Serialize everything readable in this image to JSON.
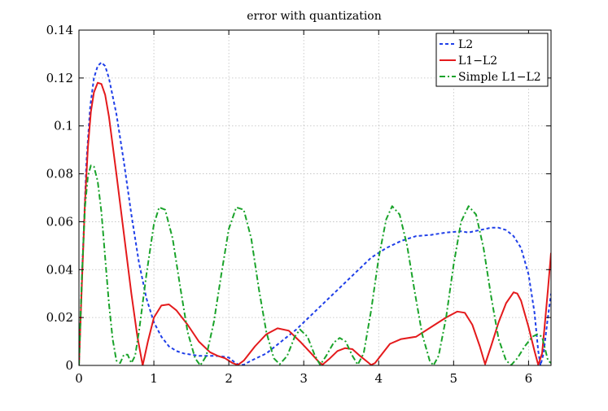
{
  "chart_data": {
    "type": "line",
    "title": "error with quantization",
    "xlabel": "",
    "ylabel": "",
    "xlim": [
      0,
      6.3
    ],
    "ylim": [
      0,
      0.14
    ],
    "x_ticks": [
      0,
      1,
      2,
      3,
      4,
      5,
      6
    ],
    "x_tick_labels": [
      "0",
      "1",
      "2",
      "3",
      "4",
      "5",
      "6"
    ],
    "y_ticks": [
      0,
      0.02,
      0.04,
      0.06,
      0.08,
      0.1,
      0.12,
      0.14
    ],
    "y_tick_labels": [
      "0",
      "0.02",
      "0.04",
      "0.06",
      "0.08",
      "0.1",
      "0.12",
      "0.14"
    ],
    "grid": true,
    "legend_position": "top-right",
    "series": [
      {
        "name": "L2",
        "color": "#1f3fe8",
        "dash": "dashed",
        "points": [
          [
            0,
            0
          ],
          [
            0.05,
            0.045
          ],
          [
            0.1,
            0.085
          ],
          [
            0.15,
            0.108
          ],
          [
            0.2,
            0.12
          ],
          [
            0.25,
            0.125
          ],
          [
            0.3,
            0.1265
          ],
          [
            0.35,
            0.125
          ],
          [
            0.4,
            0.12
          ],
          [
            0.5,
            0.105
          ],
          [
            0.6,
            0.085
          ],
          [
            0.7,
            0.063
          ],
          [
            0.8,
            0.043
          ],
          [
            0.9,
            0.028
          ],
          [
            1.0,
            0.018
          ],
          [
            1.1,
            0.012
          ],
          [
            1.2,
            0.008
          ],
          [
            1.3,
            0.006
          ],
          [
            1.4,
            0.005
          ],
          [
            1.5,
            0.0045
          ],
          [
            1.6,
            0.004
          ],
          [
            1.7,
            0.004
          ],
          [
            1.8,
            0.004
          ],
          [
            1.9,
            0.0038
          ],
          [
            2.0,
            0.0033
          ],
          [
            2.05,
            0.002
          ],
          [
            2.1,
            0.0008
          ],
          [
            2.15,
            0.0001
          ],
          [
            2.2,
            0.0003
          ],
          [
            2.3,
            0.002
          ],
          [
            2.5,
            0.005
          ],
          [
            2.7,
            0.01
          ],
          [
            2.9,
            0.015
          ],
          [
            3.1,
            0.021
          ],
          [
            3.3,
            0.027
          ],
          [
            3.5,
            0.033
          ],
          [
            3.7,
            0.039
          ],
          [
            3.9,
            0.045
          ],
          [
            4.1,
            0.049
          ],
          [
            4.3,
            0.052
          ],
          [
            4.5,
            0.054
          ],
          [
            4.7,
            0.0545
          ],
          [
            4.9,
            0.0555
          ],
          [
            5.1,
            0.056
          ],
          [
            5.2,
            0.0555
          ],
          [
            5.35,
            0.0565
          ],
          [
            5.5,
            0.0575
          ],
          [
            5.6,
            0.0575
          ],
          [
            5.7,
            0.0565
          ],
          [
            5.8,
            0.054
          ],
          [
            5.9,
            0.049
          ],
          [
            6.0,
            0.038
          ],
          [
            6.08,
            0.022
          ],
          [
            6.13,
            0.006
          ],
          [
            6.16,
            0
          ],
          [
            6.2,
            0.005
          ],
          [
            6.25,
            0.018
          ],
          [
            6.3,
            0.03
          ]
        ]
      },
      {
        "name": "L1−L2",
        "color": "#e41a1c",
        "dash": "solid",
        "points": [
          [
            0,
            0
          ],
          [
            0.04,
            0.035
          ],
          [
            0.08,
            0.068
          ],
          [
            0.12,
            0.091
          ],
          [
            0.16,
            0.106
          ],
          [
            0.2,
            0.114
          ],
          [
            0.25,
            0.118
          ],
          [
            0.3,
            0.1175
          ],
          [
            0.35,
            0.113
          ],
          [
            0.4,
            0.104
          ],
          [
            0.5,
            0.08
          ],
          [
            0.6,
            0.055
          ],
          [
            0.7,
            0.03
          ],
          [
            0.78,
            0.012
          ],
          [
            0.85,
            0
          ],
          [
            0.92,
            0.01
          ],
          [
            1.0,
            0.02
          ],
          [
            1.1,
            0.025
          ],
          [
            1.2,
            0.0255
          ],
          [
            1.3,
            0.023
          ],
          [
            1.45,
            0.017
          ],
          [
            1.6,
            0.01
          ],
          [
            1.75,
            0.0055
          ],
          [
            1.85,
            0.004
          ],
          [
            1.95,
            0.003
          ],
          [
            2.05,
            0.001
          ],
          [
            2.12,
            0.0002
          ],
          [
            2.2,
            0.002
          ],
          [
            2.35,
            0.008
          ],
          [
            2.5,
            0.013
          ],
          [
            2.65,
            0.0155
          ],
          [
            2.8,
            0.0145
          ],
          [
            2.95,
            0.01
          ],
          [
            3.1,
            0.005
          ],
          [
            3.2,
            0.0015
          ],
          [
            3.25,
            0.0003
          ],
          [
            3.35,
            0.003
          ],
          [
            3.45,
            0.006
          ],
          [
            3.55,
            0.0072
          ],
          [
            3.65,
            0.0068
          ],
          [
            3.75,
            0.004
          ],
          [
            3.85,
            0.0015
          ],
          [
            3.9,
            0.0002
          ],
          [
            3.95,
            0.001
          ],
          [
            4.05,
            0.005
          ],
          [
            4.15,
            0.009
          ],
          [
            4.3,
            0.011
          ],
          [
            4.5,
            0.012
          ],
          [
            4.7,
            0.016
          ],
          [
            4.9,
            0.02
          ],
          [
            5.05,
            0.0225
          ],
          [
            5.15,
            0.022
          ],
          [
            5.25,
            0.017
          ],
          [
            5.35,
            0.008
          ],
          [
            5.42,
            0.0005
          ],
          [
            5.5,
            0.008
          ],
          [
            5.6,
            0.018
          ],
          [
            5.7,
            0.026
          ],
          [
            5.8,
            0.0305
          ],
          [
            5.85,
            0.03
          ],
          [
            5.9,
            0.027
          ],
          [
            6.0,
            0.016
          ],
          [
            6.08,
            0.006
          ],
          [
            6.13,
            0.0002
          ],
          [
            6.18,
            0.005
          ],
          [
            6.22,
            0.018
          ],
          [
            6.26,
            0.032
          ],
          [
            6.3,
            0.047
          ]
        ]
      },
      {
        "name": "Simple L1−L2",
        "color": "#1aa32a",
        "dash": "dashdot",
        "points": [
          [
            0,
            0
          ],
          [
            0.04,
            0.038
          ],
          [
            0.08,
            0.066
          ],
          [
            0.12,
            0.079
          ],
          [
            0.16,
            0.0835
          ],
          [
            0.2,
            0.083
          ],
          [
            0.25,
            0.077
          ],
          [
            0.3,
            0.064
          ],
          [
            0.35,
            0.045
          ],
          [
            0.4,
            0.026
          ],
          [
            0.45,
            0.011
          ],
          [
            0.5,
            0.002
          ],
          [
            0.55,
            0.001
          ],
          [
            0.6,
            0.0045
          ],
          [
            0.65,
            0.0045
          ],
          [
            0.7,
            0.001
          ],
          [
            0.75,
            0.004
          ],
          [
            0.8,
            0.014
          ],
          [
            0.9,
            0.038
          ],
          [
            1.0,
            0.059
          ],
          [
            1.07,
            0.066
          ],
          [
            1.15,
            0.065
          ],
          [
            1.25,
            0.053
          ],
          [
            1.35,
            0.033
          ],
          [
            1.45,
            0.014
          ],
          [
            1.55,
            0.003
          ],
          [
            1.62,
            0
          ],
          [
            1.7,
            0.004
          ],
          [
            1.8,
            0.018
          ],
          [
            1.9,
            0.038
          ],
          [
            2.0,
            0.057
          ],
          [
            2.1,
            0.066
          ],
          [
            2.2,
            0.065
          ],
          [
            2.3,
            0.053
          ],
          [
            2.4,
            0.032
          ],
          [
            2.5,
            0.014
          ],
          [
            2.6,
            0.003
          ],
          [
            2.68,
            0.0005
          ],
          [
            2.78,
            0.004
          ],
          [
            2.88,
            0.012
          ],
          [
            2.95,
            0.015
          ],
          [
            3.05,
            0.012
          ],
          [
            3.15,
            0.004
          ],
          [
            3.22,
            0.0002
          ],
          [
            3.3,
            0.004
          ],
          [
            3.4,
            0.0095
          ],
          [
            3.48,
            0.0115
          ],
          [
            3.56,
            0.01
          ],
          [
            3.65,
            0.004
          ],
          [
            3.72,
            0.0003
          ],
          [
            3.8,
            0.005
          ],
          [
            3.9,
            0.023
          ],
          [
            4.0,
            0.045
          ],
          [
            4.1,
            0.061
          ],
          [
            4.18,
            0.0665
          ],
          [
            4.28,
            0.063
          ],
          [
            4.38,
            0.05
          ],
          [
            4.48,
            0.031
          ],
          [
            4.58,
            0.013
          ],
          [
            4.68,
            0.002
          ],
          [
            4.73,
            0
          ],
          [
            4.8,
            0.004
          ],
          [
            4.9,
            0.02
          ],
          [
            5.0,
            0.042
          ],
          [
            5.1,
            0.06
          ],
          [
            5.2,
            0.0665
          ],
          [
            5.3,
            0.063
          ],
          [
            5.4,
            0.049
          ],
          [
            5.5,
            0.029
          ],
          [
            5.6,
            0.011
          ],
          [
            5.7,
            0.002
          ],
          [
            5.77,
            0.0002
          ],
          [
            5.85,
            0.003
          ],
          [
            5.95,
            0.008
          ],
          [
            6.05,
            0.012
          ],
          [
            6.12,
            0.013
          ],
          [
            6.18,
            0.012
          ],
          [
            6.22,
            0.007
          ],
          [
            6.26,
            0.002
          ],
          [
            6.3,
            0.001
          ]
        ]
      }
    ]
  }
}
